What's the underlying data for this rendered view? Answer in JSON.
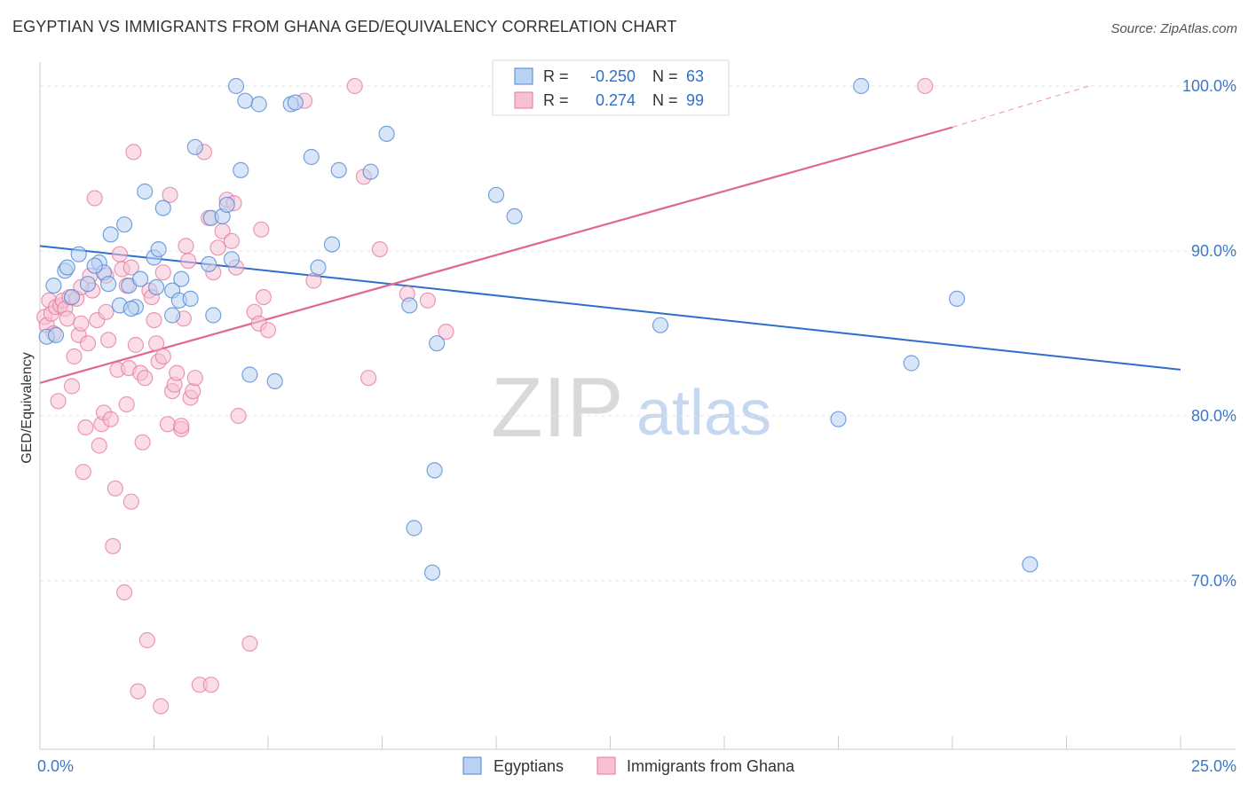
{
  "title": "EGYPTIAN VS IMMIGRANTS FROM GHANA GED/EQUIVALENCY CORRELATION CHART",
  "source": "Source: ZipAtlas.com",
  "watermark": {
    "zip": "ZIP",
    "atlas": "atlas"
  },
  "colors": {
    "blue": "#4a86d4",
    "blue_fill": "#b9d1f2",
    "blue_line": "#2f6fcc",
    "pink": "#e4799d",
    "pink_fill": "#f5c1d3",
    "pink_line": "#e0688f",
    "axis_label": "#3d78c8",
    "grid": "#e5e5e5"
  },
  "legend_top": {
    "rows": [
      {
        "r_label": "R =",
        "r_value": "-0.250",
        "n_label": "N =",
        "n_value": "63"
      },
      {
        "r_label": "R =",
        "r_value": "0.274",
        "n_label": "N =",
        "n_value": "99"
      }
    ]
  },
  "legend_bottom": {
    "series1": "Egyptians",
    "series2": "Immigrants from Ghana"
  },
  "chart_data": {
    "type": "scatter",
    "title": "EGYPTIAN VS IMMIGRANTS FROM GHANA GED/EQUIVALENCY CORRELATION CHART",
    "xlabel": "",
    "ylabel": "GED/Equivalency",
    "xlim": [
      0,
      25
    ],
    "ylim": [
      60.4,
      101.0
    ],
    "x_tick_labels": [
      "0.0%",
      "25.0%"
    ],
    "y_ticks": [
      70,
      80,
      90,
      100
    ],
    "y_tick_labels": [
      "70.0%",
      "80.0%",
      "90.0%",
      "100.0%"
    ],
    "grid": true,
    "series": [
      {
        "name": "Egyptians",
        "R": -0.25,
        "N": 63,
        "trend": {
          "x0": 0,
          "y0": 90.3,
          "x1": 25,
          "y1": 82.8
        },
        "points": [
          [
            0.15,
            84.8
          ],
          [
            0.35,
            84.9
          ],
          [
            0.3,
            87.9
          ],
          [
            0.55,
            88.8
          ],
          [
            0.6,
            89.0
          ],
          [
            0.85,
            89.8
          ],
          [
            1.05,
            88.0
          ],
          [
            1.3,
            89.3
          ],
          [
            1.4,
            88.7
          ],
          [
            1.55,
            91.0
          ],
          [
            1.85,
            91.6
          ],
          [
            1.75,
            86.7
          ],
          [
            1.95,
            87.9
          ],
          [
            2.1,
            86.6
          ],
          [
            2.2,
            88.3
          ],
          [
            2.3,
            93.6
          ],
          [
            2.5,
            89.6
          ],
          [
            2.55,
            87.8
          ],
          [
            2.6,
            90.1
          ],
          [
            2.7,
            92.6
          ],
          [
            2.9,
            86.1
          ],
          [
            2.9,
            87.6
          ],
          [
            3.1,
            88.3
          ],
          [
            3.05,
            87.0
          ],
          [
            3.3,
            87.1
          ],
          [
            3.4,
            96.3
          ],
          [
            3.75,
            92.0
          ],
          [
            3.8,
            86.1
          ],
          [
            4.0,
            92.1
          ],
          [
            4.1,
            92.8
          ],
          [
            4.2,
            89.5
          ],
          [
            4.3,
            100.0
          ],
          [
            4.4,
            94.9
          ],
          [
            4.5,
            99.1
          ],
          [
            4.6,
            82.5
          ],
          [
            4.8,
            98.9
          ],
          [
            5.15,
            82.1
          ],
          [
            5.5,
            98.9
          ],
          [
            5.6,
            99.0
          ],
          [
            5.95,
            95.7
          ],
          [
            6.1,
            89.0
          ],
          [
            6.4,
            90.4
          ],
          [
            6.55,
            94.9
          ],
          [
            7.25,
            94.8
          ],
          [
            7.6,
            97.1
          ],
          [
            8.1,
            86.7
          ],
          [
            8.2,
            73.2
          ],
          [
            8.6,
            70.5
          ],
          [
            8.65,
            76.7
          ],
          [
            8.7,
            84.4
          ],
          [
            10.0,
            93.4
          ],
          [
            10.4,
            92.1
          ],
          [
            13.6,
            85.5
          ],
          [
            17.5,
            79.8
          ],
          [
            18.0,
            100.0
          ],
          [
            19.1,
            83.2
          ],
          [
            20.1,
            87.1
          ],
          [
            21.7,
            71.0
          ],
          [
            1.5,
            88.0
          ],
          [
            3.7,
            89.2
          ],
          [
            0.7,
            87.2
          ],
          [
            2.0,
            86.5
          ],
          [
            1.2,
            89.1
          ]
        ]
      },
      {
        "name": "Immigrants from Ghana",
        "R": 0.274,
        "N": 99,
        "trend": {
          "x0": 0,
          "y0": 82.0,
          "x1": 20.0,
          "y1": 97.5,
          "dash_x1": 23.0,
          "dash_y1": 100.0
        },
        "points": [
          [
            0.1,
            86.0
          ],
          [
            0.15,
            85.5
          ],
          [
            0.2,
            87.0
          ],
          [
            0.25,
            86.2
          ],
          [
            0.3,
            85.0
          ],
          [
            0.35,
            86.6
          ],
          [
            0.4,
            80.9
          ],
          [
            0.45,
            86.7
          ],
          [
            0.5,
            87.0
          ],
          [
            0.55,
            86.5
          ],
          [
            0.6,
            85.9
          ],
          [
            0.65,
            87.2
          ],
          [
            0.7,
            81.8
          ],
          [
            0.75,
            83.6
          ],
          [
            0.8,
            87.1
          ],
          [
            0.85,
            84.9
          ],
          [
            0.9,
            85.6
          ],
          [
            0.95,
            76.6
          ],
          [
            1.0,
            79.3
          ],
          [
            1.05,
            84.4
          ],
          [
            1.1,
            88.5
          ],
          [
            1.15,
            87.6
          ],
          [
            1.2,
            93.2
          ],
          [
            1.25,
            85.8
          ],
          [
            1.3,
            78.2
          ],
          [
            1.35,
            79.5
          ],
          [
            1.4,
            80.2
          ],
          [
            1.45,
            86.3
          ],
          [
            1.5,
            84.6
          ],
          [
            1.55,
            79.8
          ],
          [
            1.6,
            72.1
          ],
          [
            1.65,
            75.6
          ],
          [
            1.7,
            82.8
          ],
          [
            1.75,
            89.8
          ],
          [
            1.8,
            88.9
          ],
          [
            1.85,
            69.3
          ],
          [
            1.9,
            80.7
          ],
          [
            1.95,
            82.9
          ],
          [
            2.0,
            74.8
          ],
          [
            2.05,
            96.0
          ],
          [
            2.1,
            84.3
          ],
          [
            2.15,
            63.3
          ],
          [
            2.2,
            82.6
          ],
          [
            2.25,
            78.4
          ],
          [
            2.3,
            82.3
          ],
          [
            2.35,
            66.4
          ],
          [
            2.4,
            87.6
          ],
          [
            2.45,
            87.2
          ],
          [
            2.5,
            85.8
          ],
          [
            2.55,
            84.4
          ],
          [
            2.6,
            83.3
          ],
          [
            2.65,
            62.4
          ],
          [
            2.7,
            83.6
          ],
          [
            2.8,
            79.5
          ],
          [
            2.85,
            93.4
          ],
          [
            2.9,
            81.5
          ],
          [
            2.95,
            81.9
          ],
          [
            3.0,
            82.6
          ],
          [
            3.1,
            79.2
          ],
          [
            3.15,
            85.9
          ],
          [
            3.2,
            90.3
          ],
          [
            3.25,
            89.4
          ],
          [
            3.3,
            81.1
          ],
          [
            3.35,
            81.5
          ],
          [
            3.4,
            82.3
          ],
          [
            3.5,
            63.7
          ],
          [
            3.6,
            96.0
          ],
          [
            3.7,
            92.0
          ],
          [
            3.75,
            63.7
          ],
          [
            3.8,
            88.7
          ],
          [
            3.9,
            90.2
          ],
          [
            4.0,
            91.2
          ],
          [
            4.1,
            93.1
          ],
          [
            4.2,
            90.6
          ],
          [
            4.3,
            89.0
          ],
          [
            4.35,
            80.0
          ],
          [
            4.6,
            66.2
          ],
          [
            4.7,
            86.3
          ],
          [
            4.8,
            85.6
          ],
          [
            4.85,
            91.3
          ],
          [
            4.9,
            87.2
          ],
          [
            5.0,
            85.2
          ],
          [
            5.8,
            99.1
          ],
          [
            6.0,
            88.2
          ],
          [
            6.9,
            100.0
          ],
          [
            7.1,
            94.5
          ],
          [
            7.2,
            82.3
          ],
          [
            7.45,
            90.1
          ],
          [
            8.05,
            87.4
          ],
          [
            8.5,
            87.0
          ],
          [
            8.9,
            85.1
          ],
          [
            19.4,
            100.0
          ],
          [
            3.1,
            79.4
          ],
          [
            4.25,
            92.9
          ],
          [
            1.45,
            88.5
          ],
          [
            2.0,
            89.0
          ],
          [
            0.9,
            87.8
          ],
          [
            1.9,
            87.9
          ],
          [
            2.7,
            88.7
          ]
        ]
      }
    ]
  }
}
